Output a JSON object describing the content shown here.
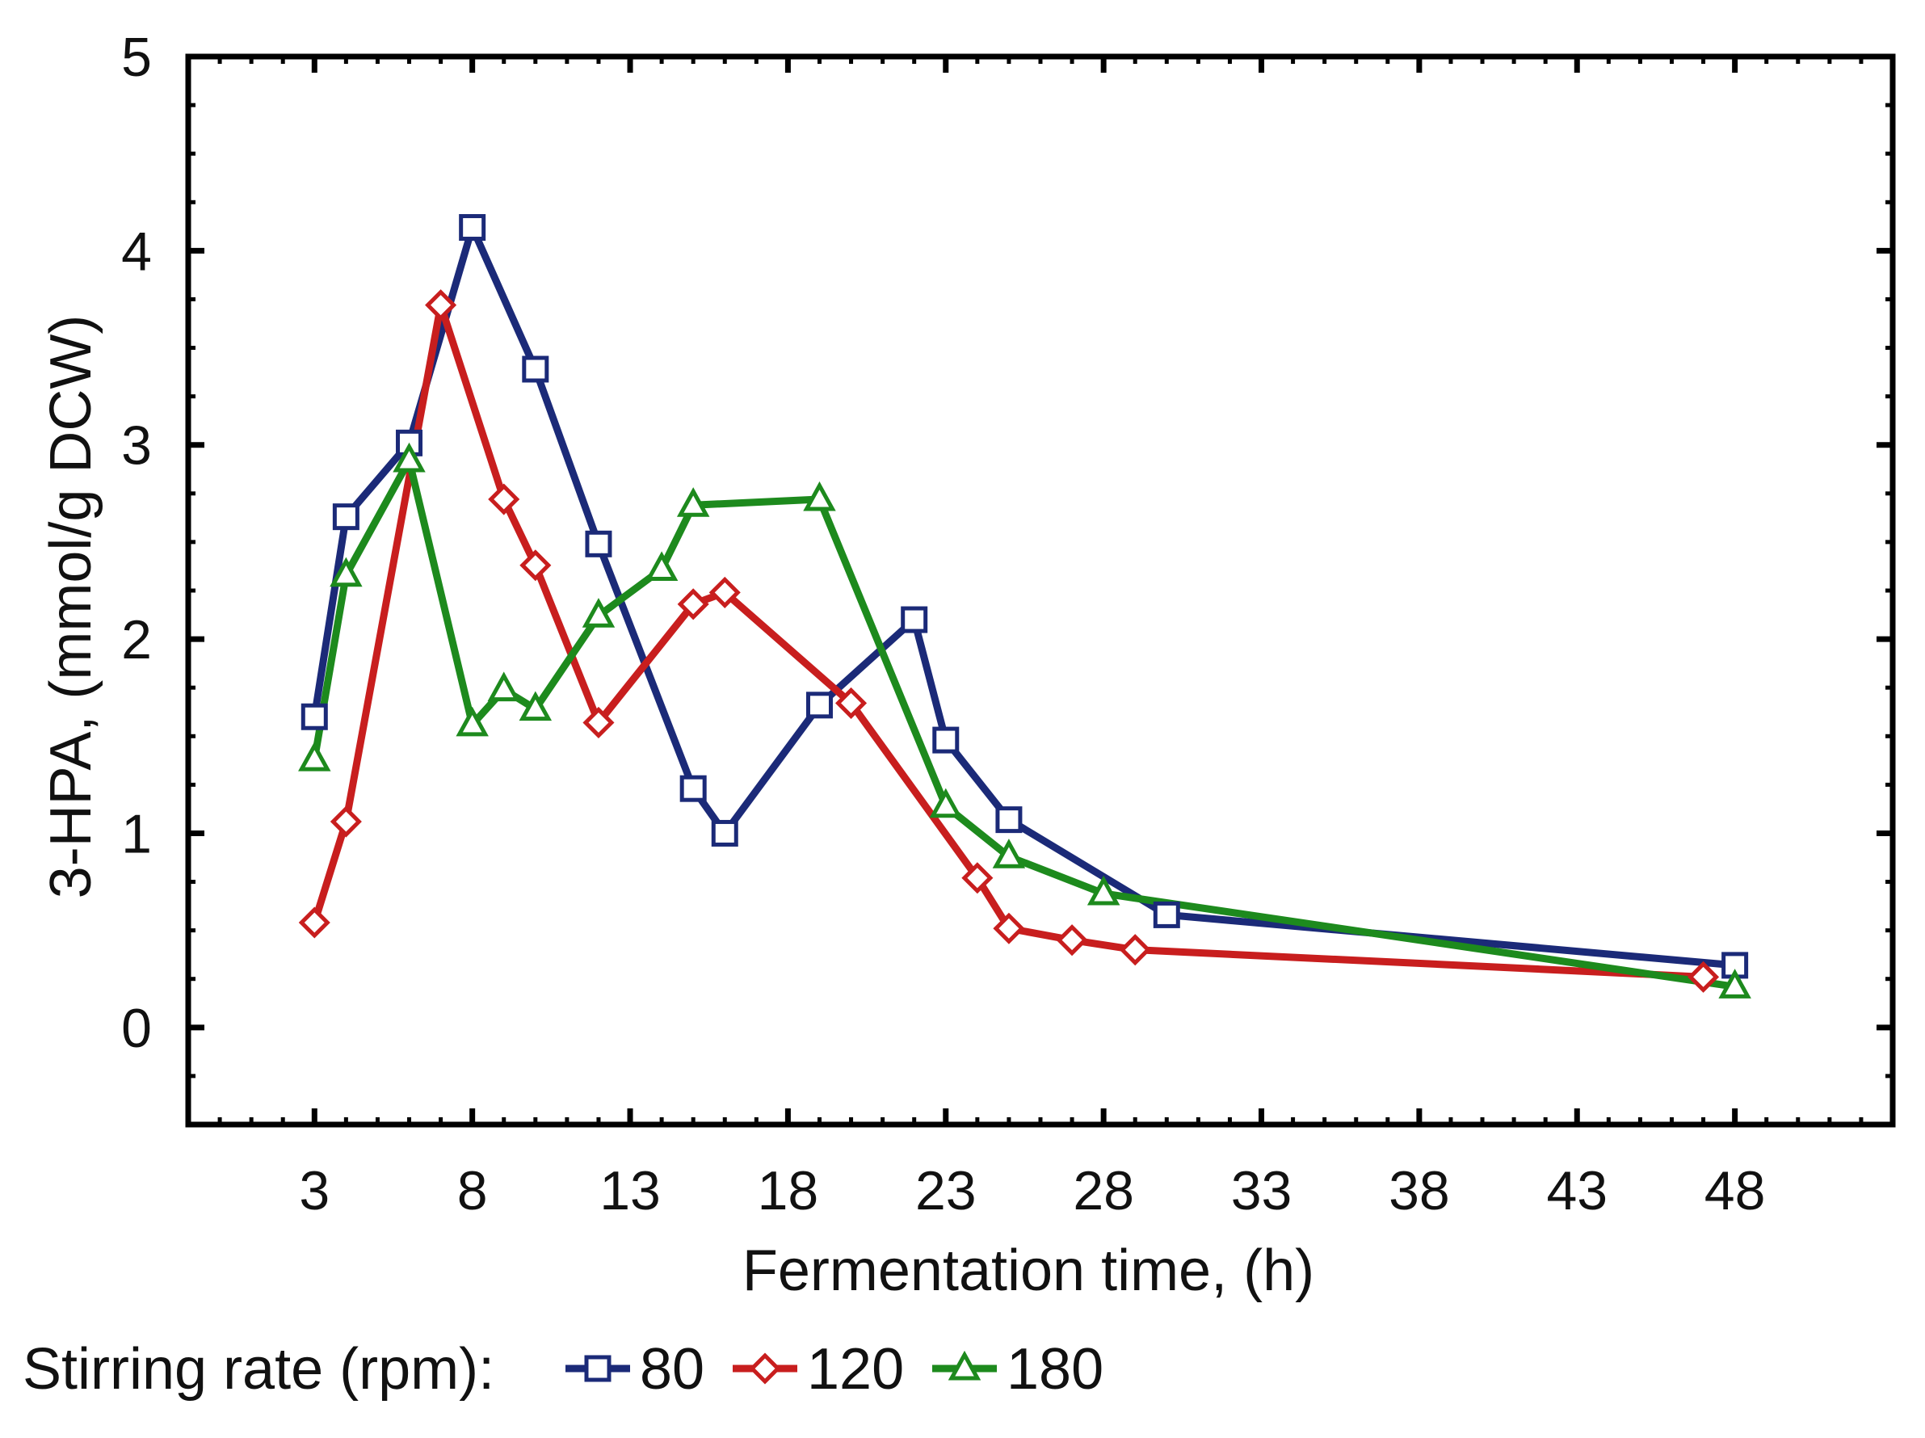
{
  "chart_data": {
    "type": "line",
    "title": "",
    "xlabel": "Fermentation time, (h)",
    "ylabel": "3-HPA, (mmol/g DCW)",
    "xlim": [
      -1,
      53
    ],
    "ylim": [
      -0.5,
      5
    ],
    "xticks": [
      3,
      8,
      13,
      18,
      23,
      28,
      33,
      38,
      43,
      48
    ],
    "xtick_labels": [
      "3",
      "8",
      "13",
      "18",
      "23",
      "28",
      "33",
      "38",
      "43",
      "48"
    ],
    "yticks": [
      0,
      1,
      2,
      3,
      4,
      5
    ],
    "ytick_labels": [
      "0",
      "1",
      "2",
      "3",
      "4",
      "5"
    ],
    "grid": false,
    "legend": {
      "title": "Stirring rate (rpm):",
      "placement": "bottom-left"
    },
    "series": [
      {
        "name": "80",
        "color": "#1b2a78",
        "marker": "square",
        "x": [
          3,
          4,
          6,
          8,
          10,
          12,
          15,
          16,
          19,
          22,
          23,
          25,
          30,
          48
        ],
        "y": [
          1.6,
          2.63,
          3.01,
          4.12,
          3.39,
          2.49,
          1.23,
          1.0,
          1.66,
          2.1,
          1.48,
          1.07,
          0.58,
          0.32
        ]
      },
      {
        "name": "120",
        "color": "#c81e1e",
        "marker": "diamond",
        "x": [
          3,
          4,
          7,
          9,
          10,
          12,
          15,
          16,
          20,
          24,
          25,
          27,
          29,
          47
        ],
        "y": [
          0.54,
          1.06,
          3.72,
          2.72,
          2.38,
          1.57,
          2.18,
          2.24,
          1.67,
          0.77,
          0.51,
          0.45,
          0.4,
          0.26
        ]
      },
      {
        "name": "180",
        "color": "#1d8a1d",
        "marker": "triangle",
        "x": [
          3,
          4,
          6,
          8,
          9,
          10,
          12,
          14,
          15,
          19,
          23,
          25,
          28,
          48
        ],
        "y": [
          1.38,
          2.33,
          2.92,
          1.56,
          1.74,
          1.64,
          2.12,
          2.36,
          2.69,
          2.72,
          1.14,
          0.88,
          0.69,
          0.21
        ]
      }
    ]
  }
}
